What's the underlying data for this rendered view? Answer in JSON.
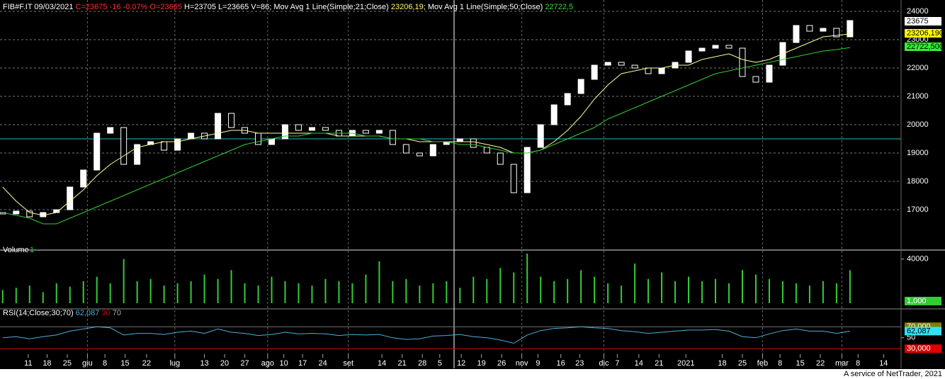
{
  "chart_data": [
    {
      "type": "candlestick",
      "title_segments": [
        {
          "text": "FIB#F.IT 09/03/2021 ",
          "color": "#ffffff"
        },
        {
          "text": "C=23675 -16 -0,07% O=23665",
          "color": "#ff3030"
        },
        {
          "text": " H=23705 L=23665 V=86; Mov Avg 1 Line(Simple;21;Close) ",
          "color": "#ffffff"
        },
        {
          "text": "23206,19",
          "color": "#ffff66"
        },
        {
          "text": "; Mov Avg 1 Line(Simple;50;Close) ",
          "color": "#ffffff"
        },
        {
          "text": "22722,5",
          "color": "#33dd33"
        }
      ],
      "xlim": [
        -0.2,
        66.8
      ],
      "xticks": [
        {
          "value": 1.9,
          "label": "11"
        },
        {
          "value": 3.3,
          "label": "18"
        },
        {
          "value": 4.8,
          "label": "25"
        },
        {
          "value": 6.3,
          "label": "giu"
        },
        {
          "value": 7.6,
          "label": "8"
        },
        {
          "value": 9.1,
          "label": "15"
        },
        {
          "value": 10.7,
          "label": "22"
        },
        {
          "value": 12.8,
          "label": "lug"
        },
        {
          "value": 15.0,
          "label": "13"
        },
        {
          "value": 16.5,
          "label": "20"
        },
        {
          "value": 18.0,
          "label": "27"
        },
        {
          "value": 19.7,
          "label": "ago"
        },
        {
          "value": 20.9,
          "label": "10"
        },
        {
          "value": 22.3,
          "label": "17"
        },
        {
          "value": 23.8,
          "label": "24"
        },
        {
          "value": 25.7,
          "label": "set"
        },
        {
          "value": 28.2,
          "label": "14"
        },
        {
          "value": 29.7,
          "label": "21"
        },
        {
          "value": 31.2,
          "label": "28"
        },
        {
          "value": 32.5,
          "label": "5"
        },
        {
          "value": 34.1,
          "label": "12"
        },
        {
          "value": 35.6,
          "label": "19"
        },
        {
          "value": 37.1,
          "label": "26"
        },
        {
          "value": 38.6,
          "label": "nov"
        },
        {
          "value": 39.8,
          "label": "9"
        },
        {
          "value": 41.5,
          "label": "16"
        },
        {
          "value": 42.9,
          "label": "23"
        },
        {
          "value": 44.7,
          "label": "dic"
        },
        {
          "value": 45.7,
          "label": "7"
        },
        {
          "value": 47.3,
          "label": "14"
        },
        {
          "value": 48.8,
          "label": "21"
        },
        {
          "value": 50.8,
          "label": "2021"
        },
        {
          "value": 53.5,
          "label": "18"
        },
        {
          "value": 55.0,
          "label": "25"
        },
        {
          "value": 56.5,
          "label": "feb"
        },
        {
          "value": 57.8,
          "label": "8"
        },
        {
          "value": 59.3,
          "label": "15"
        },
        {
          "value": 60.8,
          "label": "22"
        },
        {
          "value": 62.4,
          "label": "mar"
        },
        {
          "value": 63.6,
          "label": "8"
        },
        {
          "value": 65.5,
          "label": "14"
        }
      ],
      "ylim": [
        15900,
        24400
      ],
      "yticks": [
        17000,
        18000,
        19000,
        20000,
        21000,
        22000,
        23000,
        24000
      ],
      "grid": true,
      "hline": 19500,
      "hline_color": "#20c0c0",
      "up_color": "#ffffff",
      "down_color": "#000000",
      "open": [
        16900,
        16850,
        16950,
        16750,
        16900,
        17000,
        17800,
        18400,
        19700,
        19900,
        18600,
        19300,
        19400,
        19100,
        19500,
        19700,
        19500,
        20400,
        19900,
        19700,
        19300,
        19500,
        20000,
        19800,
        19900,
        19800,
        19600,
        19800,
        19700,
        19800,
        19300,
        19000,
        18900,
        19300,
        19400,
        19500,
        19200,
        19000,
        18600,
        17600,
        19200,
        20000,
        20700,
        21100,
        21600,
        22100,
        22200,
        22100,
        22000,
        21800,
        22000,
        22200,
        22600,
        22700,
        22800,
        22700,
        21700,
        21500,
        22100,
        22900,
        23500,
        23300,
        23400,
        23100
      ],
      "close": [
        16850,
        16950,
        16750,
        16900,
        17000,
        17800,
        18400,
        19700,
        19900,
        18600,
        19300,
        19400,
        19100,
        19500,
        19700,
        19500,
        20400,
        19900,
        19700,
        19300,
        19500,
        20000,
        19800,
        19900,
        19800,
        19600,
        19800,
        19700,
        19800,
        19300,
        19000,
        18900,
        19300,
        19400,
        19500,
        19200,
        19000,
        18600,
        17600,
        19200,
        20000,
        20700,
        21100,
        21600,
        22100,
        22200,
        22100,
        22000,
        21800,
        22000,
        22200,
        22600,
        22700,
        22800,
        22700,
        21700,
        21500,
        22100,
        22900,
        23500,
        23300,
        23400,
        23100,
        23675
      ],
      "series": [
        {
          "color": "#ffff99",
          "last_label": "23206,190",
          "label_color": "#ffff00",
          "values": [
            17800,
            17300,
            16900,
            16800,
            16900,
            17300,
            17700,
            18200,
            18600,
            18900,
            19200,
            19300,
            19400,
            19400,
            19500,
            19600,
            19700,
            19800,
            19800,
            19700,
            19700,
            19700,
            19700,
            19700,
            19700,
            19600,
            19600,
            19600,
            19600,
            19500,
            19500,
            19400,
            19400,
            19400,
            19400,
            19400,
            19300,
            19200,
            19000,
            19000,
            19100,
            19400,
            19800,
            20300,
            20900,
            21400,
            21800,
            21900,
            22000,
            22000,
            22100,
            22100,
            22300,
            22400,
            22500,
            22300,
            22200,
            22300,
            22500,
            22700,
            22900,
            23100,
            23150,
            23206.19
          ]
        },
        {
          "color": "#33cc33",
          "last_label": "22722,500",
          "label_color": "#33ee33",
          "values": [
            16900,
            16800,
            16700,
            16500,
            16500,
            16700,
            16900,
            17100,
            17300,
            17500,
            17700,
            17900,
            18100,
            18300,
            18500,
            18700,
            18900,
            19100,
            19300,
            19400,
            19500,
            19600,
            19600,
            19700,
            19700,
            19700,
            19700,
            19600,
            19600,
            19500,
            19500,
            19500,
            19400,
            19400,
            19300,
            19300,
            19200,
            19100,
            19000,
            19000,
            19100,
            19300,
            19500,
            19700,
            19900,
            20200,
            20400,
            20600,
            20800,
            21000,
            21200,
            21400,
            21600,
            21800,
            21900,
            22000,
            22100,
            22200,
            22300,
            22400,
            22500,
            22600,
            22650,
            22722.5
          ]
        }
      ]
    },
    {
      "type": "bar",
      "title": "Volume",
      "title_suffix": "1",
      "scale_label": "1,000",
      "color": "#33cc33",
      "ylim": [
        0,
        45000
      ],
      "yticks": [
        40000
      ],
      "values": [
        12000,
        14000,
        16000,
        10000,
        18000,
        15000,
        20000,
        24000,
        18000,
        40000,
        20000,
        22000,
        16000,
        18000,
        20000,
        26000,
        22000,
        30000,
        18000,
        16000,
        24000,
        20000,
        18000,
        16000,
        22000,
        20000,
        18000,
        26000,
        38000,
        20000,
        22000,
        16000,
        18000,
        20000,
        14000,
        24000,
        22000,
        32000,
        28000,
        45000,
        24000,
        20000,
        22000,
        30000,
        24000,
        18000,
        16000,
        36000,
        22000,
        28000,
        20000,
        24000,
        20000,
        22000,
        18000,
        30000,
        26000,
        22000,
        20000,
        18000,
        16000,
        20000,
        18000,
        30000
      ]
    },
    {
      "type": "line",
      "title": "RSI(14;Close;30;70)",
      "last_label": "62,087",
      "color": "#4ab0d8",
      "ylim": [
        0,
        100
      ],
      "yticks": [
        50
      ],
      "levels": [
        {
          "value": 70,
          "label": "70,000",
          "color": "#808000"
        },
        {
          "value": 30,
          "label": "30,000",
          "color": "#dd0000"
        }
      ],
      "level_texts": [
        "30",
        "70"
      ],
      "values": [
        50,
        52,
        48,
        52,
        55,
        62,
        66,
        70,
        68,
        55,
        58,
        58,
        56,
        60,
        62,
        58,
        66,
        60,
        58,
        54,
        56,
        60,
        57,
        58,
        57,
        54,
        56,
        55,
        56,
        50,
        47,
        48,
        53,
        54,
        56,
        52,
        50,
        46,
        40,
        55,
        63,
        67,
        68,
        70,
        68,
        67,
        63,
        61,
        58,
        60,
        62,
        64,
        64,
        65,
        62,
        52,
        50,
        57,
        63,
        66,
        62,
        62,
        58,
        62.087
      ]
    }
  ],
  "footer": "A service of NetTrader, 2021"
}
